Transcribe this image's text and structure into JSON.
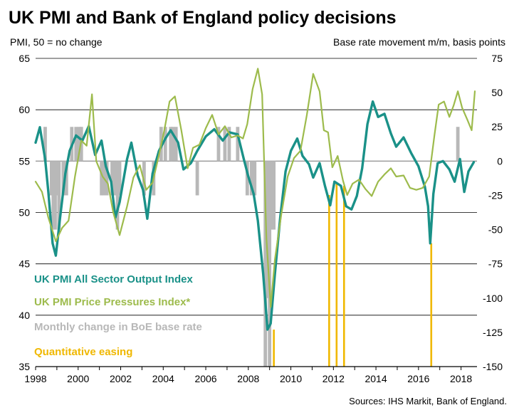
{
  "chart_data": {
    "type": "line",
    "title": "UK PMI and Bank of England policy decisions",
    "left_axis_label": "PMI, 50 = no change",
    "right_axis_label": "Base rate movement m/m, basis points",
    "source": "Sources: IHS Markit, Bank of England.",
    "x_ticks": [
      "1998",
      "2000",
      "2002",
      "2004",
      "2006",
      "2008",
      "2010",
      "2012",
      "2014",
      "2016",
      "2018"
    ],
    "x_range": [
      1998.0,
      2018.75
    ],
    "left_ylim": [
      35,
      65
    ],
    "left_ticks": [
      "35",
      "40",
      "45",
      "50",
      "55",
      "60",
      "65"
    ],
    "right_ylim": [
      -150,
      75
    ],
    "right_ticks": [
      "-150",
      "-125",
      "-100",
      "-75",
      "-50",
      "-25",
      "0",
      "25",
      "50",
      "75"
    ],
    "grid": "horizontal",
    "legend_placement": "bottom-left",
    "colors": {
      "output": "#1a9188",
      "price": "#9dbb4c",
      "rate": "#b8b8b8",
      "qe": "#f0b800",
      "grid": "#000000"
    },
    "series": [
      {
        "name": "UK PMI All Sector Output Index",
        "axis": "left",
        "color": "#1a9188",
        "points": [
          [
            1998.0,
            56.8
          ],
          [
            1998.2,
            58.3
          ],
          [
            1998.45,
            55.2
          ],
          [
            1998.6,
            52.0
          ],
          [
            1998.8,
            47.0
          ],
          [
            1998.95,
            45.8
          ],
          [
            1999.15,
            49.5
          ],
          [
            1999.4,
            53.8
          ],
          [
            1999.6,
            56.0
          ],
          [
            1999.9,
            57.5
          ],
          [
            2000.2,
            57.0
          ],
          [
            2000.5,
            58.4
          ],
          [
            2000.8,
            55.6
          ],
          [
            2001.1,
            57.0
          ],
          [
            2001.3,
            54.5
          ],
          [
            2001.55,
            53.0
          ],
          [
            2001.75,
            49.5
          ],
          [
            2001.95,
            51.0
          ],
          [
            2002.3,
            55.2
          ],
          [
            2002.5,
            56.8
          ],
          [
            2002.8,
            53.6
          ],
          [
            2003.05,
            52.2
          ],
          [
            2003.25,
            49.4
          ],
          [
            2003.5,
            53.8
          ],
          [
            2003.8,
            56.0
          ],
          [
            2004.1,
            57.2
          ],
          [
            2004.35,
            58.0
          ],
          [
            2004.7,
            56.8
          ],
          [
            2004.95,
            54.2
          ],
          [
            2005.3,
            54.8
          ],
          [
            2005.6,
            56.0
          ],
          [
            2006.0,
            57.4
          ],
          [
            2006.4,
            58.1
          ],
          [
            2006.8,
            57.0
          ],
          [
            2007.1,
            57.8
          ],
          [
            2007.5,
            57.6
          ],
          [
            2007.8,
            55.1
          ],
          [
            2008.0,
            53.5
          ],
          [
            2008.25,
            51.8
          ],
          [
            2008.45,
            49.2
          ],
          [
            2008.7,
            44.0
          ],
          [
            2008.9,
            38.6
          ],
          [
            2009.05,
            39.2
          ],
          [
            2009.25,
            44.0
          ],
          [
            2009.5,
            49.5
          ],
          [
            2009.75,
            54.0
          ],
          [
            2010.0,
            56.0
          ],
          [
            2010.3,
            57.2
          ],
          [
            2010.55,
            55.5
          ],
          [
            2010.85,
            54.7
          ],
          [
            2011.05,
            53.4
          ],
          [
            2011.35,
            54.8
          ],
          [
            2011.6,
            52.6
          ],
          [
            2011.85,
            50.7
          ],
          [
            2012.05,
            53.0
          ],
          [
            2012.35,
            52.6
          ],
          [
            2012.6,
            50.6
          ],
          [
            2012.85,
            50.3
          ],
          [
            2013.1,
            51.6
          ],
          [
            2013.35,
            54.3
          ],
          [
            2013.6,
            58.6
          ],
          [
            2013.85,
            60.8
          ],
          [
            2014.1,
            59.3
          ],
          [
            2014.4,
            59.6
          ],
          [
            2014.7,
            57.7
          ],
          [
            2014.95,
            56.4
          ],
          [
            2015.3,
            57.3
          ],
          [
            2015.65,
            55.8
          ],
          [
            2016.0,
            54.5
          ],
          [
            2016.3,
            52.5
          ],
          [
            2016.45,
            50.6
          ],
          [
            2016.55,
            47.0
          ],
          [
            2016.7,
            51.8
          ],
          [
            2016.9,
            54.8
          ],
          [
            2017.15,
            55.0
          ],
          [
            2017.45,
            54.2
          ],
          [
            2017.7,
            53.0
          ],
          [
            2017.95,
            55.2
          ],
          [
            2018.15,
            52.0
          ],
          [
            2018.35,
            54.0
          ],
          [
            2018.6,
            54.9
          ]
        ]
      },
      {
        "name": "UK PMI Price Pressures Index*",
        "axis": "left",
        "color": "#9dbb4c",
        "points": [
          [
            1998.0,
            53.0
          ],
          [
            1998.3,
            52.0
          ],
          [
            1998.6,
            49.5
          ],
          [
            1998.95,
            47.2
          ],
          [
            1999.25,
            48.5
          ],
          [
            1999.55,
            49.2
          ],
          [
            1999.85,
            53.5
          ],
          [
            2000.15,
            57.0
          ],
          [
            2000.4,
            56.5
          ],
          [
            2000.65,
            61.5
          ],
          [
            2000.85,
            55.0
          ],
          [
            2001.15,
            53.5
          ],
          [
            2001.4,
            52.8
          ],
          [
            2001.65,
            50.0
          ],
          [
            2001.95,
            47.8
          ],
          [
            2002.3,
            50.6
          ],
          [
            2002.6,
            53.4
          ],
          [
            2002.9,
            54.6
          ],
          [
            2003.2,
            52.2
          ],
          [
            2003.5,
            52.9
          ],
          [
            2003.8,
            55.6
          ],
          [
            2004.05,
            58.0
          ],
          [
            2004.3,
            60.8
          ],
          [
            2004.55,
            61.3
          ],
          [
            2004.85,
            58.0
          ],
          [
            2005.15,
            54.3
          ],
          [
            2005.4,
            56.3
          ],
          [
            2005.7,
            56.6
          ],
          [
            2006.0,
            58.2
          ],
          [
            2006.3,
            59.5
          ],
          [
            2006.6,
            57.6
          ],
          [
            2006.9,
            58.4
          ],
          [
            2007.2,
            57.3
          ],
          [
            2007.5,
            57.5
          ],
          [
            2007.75,
            57.2
          ],
          [
            2007.95,
            58.6
          ],
          [
            2008.2,
            62.0
          ],
          [
            2008.45,
            64.0
          ],
          [
            2008.65,
            61.5
          ],
          [
            2008.85,
            47.5
          ],
          [
            2009.05,
            40.8
          ],
          [
            2009.25,
            45.4
          ],
          [
            2009.55,
            49.8
          ],
          [
            2009.85,
            53.5
          ],
          [
            2010.15,
            55.3
          ],
          [
            2010.45,
            56.0
          ],
          [
            2010.75,
            59.5
          ],
          [
            2011.05,
            63.5
          ],
          [
            2011.35,
            61.8
          ],
          [
            2011.55,
            58.0
          ],
          [
            2011.75,
            57.8
          ],
          [
            2011.95,
            54.4
          ],
          [
            2012.2,
            55.5
          ],
          [
            2012.45,
            53.1
          ],
          [
            2012.65,
            51.7
          ],
          [
            2012.9,
            52.8
          ],
          [
            2013.2,
            53.2
          ],
          [
            2013.5,
            52.3
          ],
          [
            2013.8,
            51.6
          ],
          [
            2014.1,
            53.0
          ],
          [
            2014.4,
            53.7
          ],
          [
            2014.7,
            54.3
          ],
          [
            2014.95,
            53.5
          ],
          [
            2015.3,
            53.6
          ],
          [
            2015.6,
            52.4
          ],
          [
            2015.9,
            52.2
          ],
          [
            2016.2,
            52.4
          ],
          [
            2016.5,
            53.5
          ],
          [
            2016.75,
            57.5
          ],
          [
            2016.95,
            60.5
          ],
          [
            2017.2,
            60.8
          ],
          [
            2017.45,
            59.3
          ],
          [
            2017.65,
            60.4
          ],
          [
            2017.85,
            61.8
          ],
          [
            2018.05,
            60.2
          ],
          [
            2018.3,
            59.0
          ],
          [
            2018.5,
            58.0
          ],
          [
            2018.65,
            61.8
          ]
        ]
      }
    ],
    "rate_changes": {
      "name": "Monthly change in BoE base rate",
      "axis": "right",
      "color": "#b8b8b8",
      "bars": [
        [
          1998.45,
          25
        ],
        [
          1998.75,
          -25
        ],
        [
          1998.83,
          -50
        ],
        [
          1998.92,
          -50
        ],
        [
          1999.0,
          -25
        ],
        [
          1999.1,
          -50
        ],
        [
          1999.3,
          -25
        ],
        [
          1999.45,
          -25
        ],
        [
          1999.7,
          25
        ],
        [
          1999.9,
          25
        ],
        [
          2000.05,
          25
        ],
        [
          2000.15,
          25
        ],
        [
          2001.1,
          -25
        ],
        [
          2001.2,
          -25
        ],
        [
          2001.35,
          -25
        ],
        [
          2001.6,
          -25
        ],
        [
          2001.75,
          -25
        ],
        [
          2001.85,
          -50
        ],
        [
          2001.95,
          -25
        ],
        [
          2003.1,
          -25
        ],
        [
          2003.55,
          -25
        ],
        [
          2003.9,
          25
        ],
        [
          2004.1,
          25
        ],
        [
          2004.35,
          25
        ],
        [
          2004.45,
          25
        ],
        [
          2004.6,
          25
        ],
        [
          2005.6,
          -25
        ],
        [
          2006.6,
          25
        ],
        [
          2006.9,
          25
        ],
        [
          2007.1,
          25
        ],
        [
          2007.5,
          25
        ],
        [
          2007.95,
          -25
        ],
        [
          2008.15,
          -25
        ],
        [
          2008.3,
          -25
        ],
        [
          2008.8,
          -150
        ],
        [
          2008.9,
          -100
        ],
        [
          2009.0,
          -150
        ],
        [
          2009.1,
          -50
        ],
        [
          2009.2,
          -50
        ],
        [
          2017.85,
          25
        ]
      ]
    },
    "qe_dates": {
      "name": "Quantitative easing",
      "color": "#f0b800",
      "dates": [
        2009.2,
        2011.8,
        2012.15,
        2012.5,
        2016.6
      ]
    }
  }
}
